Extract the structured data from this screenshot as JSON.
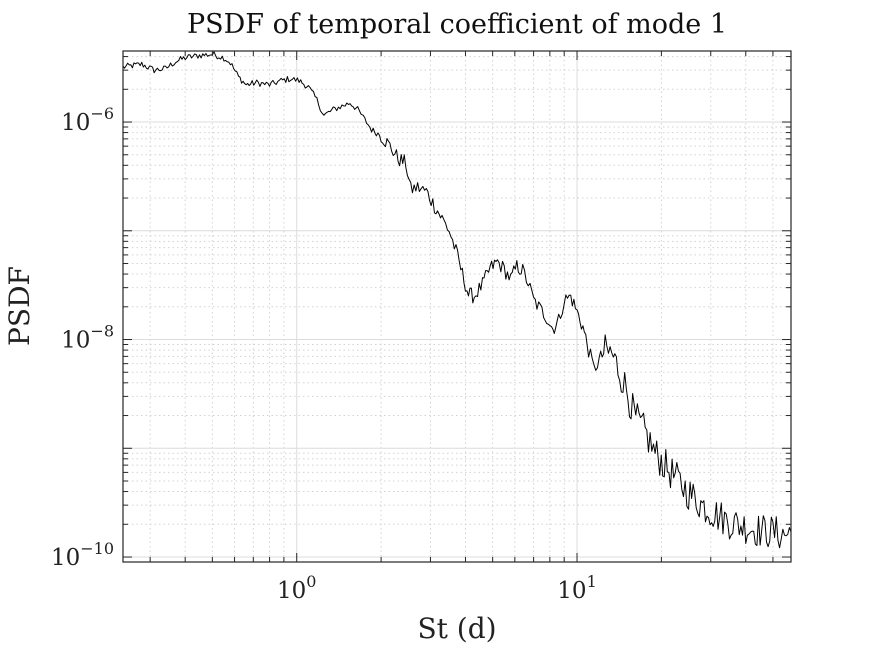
{
  "chart_data": {
    "type": "line",
    "title": "PSDF of temporal coefficient of mode 1",
    "xlabel": "St (d)",
    "ylabel": "PSDF",
    "xscale": "log",
    "yscale": "log",
    "xlim": [
      0.24,
      58
    ],
    "ylim": [
      9e-11,
      4.5e-06
    ],
    "grid": true,
    "minor_grid": true,
    "x_ticks": [
      {
        "value": 1,
        "base": "10",
        "exp": "0"
      },
      {
        "value": 10,
        "base": "10",
        "exp": "1"
      }
    ],
    "y_ticks": [
      {
        "value": 1e-10,
        "base": "10",
        "exp": "−10"
      },
      {
        "value": 1e-08,
        "base": "10",
        "exp": "−8"
      },
      {
        "value": 1e-06,
        "base": "10",
        "exp": "−6"
      }
    ],
    "series": [
      {
        "name": "mode 1",
        "color": "#000000",
        "points": [
          [
            0.24,
            3.2e-06
          ],
          [
            0.28,
            3.4e-06
          ],
          [
            0.31,
            3e-06
          ],
          [
            0.34,
            3.1e-06
          ],
          [
            0.37,
            3.6e-06
          ],
          [
            0.4,
            3.9e-06
          ],
          [
            0.45,
            4.1e-06
          ],
          [
            0.5,
            4.2e-06
          ],
          [
            0.55,
            3.9e-06
          ],
          [
            0.58,
            3.5e-06
          ],
          [
            0.62,
            2.6e-06
          ],
          [
            0.66,
            2.2e-06
          ],
          [
            0.72,
            2.3e-06
          ],
          [
            0.8,
            2.2e-06
          ],
          [
            0.88,
            2.4e-06
          ],
          [
            0.95,
            2.5e-06
          ],
          [
            1.02,
            2.4e-06
          ],
          [
            1.1,
            2.1e-06
          ],
          [
            1.18,
            1.6e-06
          ],
          [
            1.25,
            1.15e-06
          ],
          [
            1.35,
            1.3e-06
          ],
          [
            1.45,
            1.4e-06
          ],
          [
            1.55,
            1.5e-06
          ],
          [
            1.65,
            1.3e-06
          ],
          [
            1.75,
            1.05e-06
          ],
          [
            1.85,
            8.5e-07
          ],
          [
            2.0,
            7.5e-07
          ],
          [
            2.15,
            6e-07
          ],
          [
            2.3,
            4.6e-07
          ],
          [
            2.45,
            4.2e-07
          ],
          [
            2.55,
            2.4e-07
          ],
          [
            2.7,
            2.5e-07
          ],
          [
            2.9,
            2.3e-07
          ],
          [
            3.1,
            1.7e-07
          ],
          [
            3.3,
            1.3e-07
          ],
          [
            3.5,
            1e-07
          ],
          [
            3.7,
            6.5e-08
          ],
          [
            3.9,
            4e-08
          ],
          [
            4.1,
            2.6e-08
          ],
          [
            4.3,
            2.5e-08
          ],
          [
            4.6,
            3.2e-08
          ],
          [
            4.9,
            4.5e-08
          ],
          [
            5.2,
            5.2e-08
          ],
          [
            5.5,
            4.4e-08
          ],
          [
            5.8,
            3.6e-08
          ],
          [
            6.1,
            4.7e-08
          ],
          [
            6.4,
            4.3e-08
          ],
          [
            6.7,
            3.3e-08
          ],
          [
            7.0,
            2.3e-08
          ],
          [
            7.4,
            1.9e-08
          ],
          [
            7.8,
            1.6e-08
          ],
          [
            8.2,
            1.25e-08
          ],
          [
            8.6,
            1.5e-08
          ],
          [
            9.0,
            2.3e-08
          ],
          [
            9.5,
            2.5e-08
          ],
          [
            10.0,
            1.8e-08
          ],
          [
            10.5,
            1.3e-08
          ],
          [
            11.0,
            8e-09
          ],
          [
            11.5,
            5.3e-09
          ],
          [
            12.0,
            6.5e-09
          ],
          [
            12.6,
            7.8e-09
          ],
          [
            13.3,
            7.4e-09
          ],
          [
            14.0,
            5.5e-09
          ],
          [
            15.0,
            3.5e-09
          ],
          [
            16.0,
            2e-09
          ],
          [
            17.5,
            1.4e-09
          ],
          [
            19.0,
            9e-10
          ],
          [
            21.0,
            6.5e-10
          ],
          [
            23.0,
            5e-10
          ],
          [
            25.0,
            3.9e-10
          ],
          [
            28.0,
            3e-10
          ],
          [
            31.0,
            2.5e-10
          ],
          [
            35.0,
            2.1e-10
          ],
          [
            40.0,
            1.9e-10
          ],
          [
            45.0,
            1.75e-10
          ],
          [
            50.0,
            1.7e-10
          ],
          [
            55.0,
            1.6e-10
          ],
          [
            58.0,
            1.7e-10
          ]
        ]
      }
    ]
  }
}
